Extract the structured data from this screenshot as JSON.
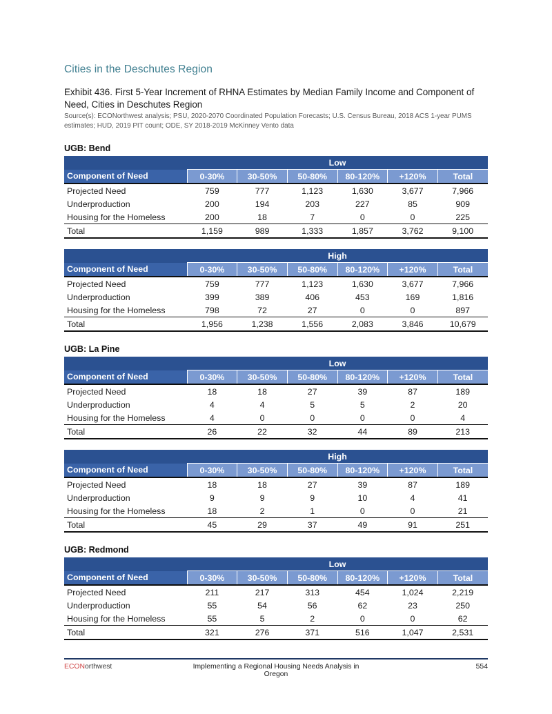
{
  "page": {
    "section_title": "Cities in the Deschutes Region",
    "exhibit_title": "Exhibit 436. First 5-Year Increment of RHNA Estimates by Median Family Income and Component of Need, Cities in Deschutes Region",
    "source": "Source(s): ECONorthwest analysis; PSU, 2020-2070 Coordinated Population Forecasts; U.S. Census Bureau, 2018 ACS 1-year PUMS estimates; HUD, 2019 PIT count; ODE, SY 2018-2019 McKinney Vento data"
  },
  "colors": {
    "section_title_teal": "#3e7e8f",
    "scenario_row_blue": "#2b5191",
    "row_header_blue": "#3a63a8",
    "column_header_blue": "#7b9ad1",
    "footer_rule_navy": "#1f3864",
    "brand_red": "#cf4343"
  },
  "table_template": {
    "row_header": "Component of Need",
    "columns": [
      "0-30%",
      "30-50%",
      "50-80%",
      "80-120%",
      "+120%",
      "Total"
    ]
  },
  "sections": [
    {
      "ugb": "UGB: Bend",
      "tables": [
        {
          "scenario": "Low",
          "rows": [
            {
              "label": "Projected Need",
              "values": [
                "759",
                "777",
                "1,123",
                "1,630",
                "3,677",
                "7,966"
              ]
            },
            {
              "label": "Underproduction",
              "values": [
                "200",
                "194",
                "203",
                "227",
                "85",
                "909"
              ]
            },
            {
              "label": "Housing for the Homeless",
              "values": [
                "200",
                "18",
                "7",
                "0",
                "0",
                "225"
              ]
            }
          ],
          "total": {
            "label": "Total",
            "values": [
              "1,159",
              "989",
              "1,333",
              "1,857",
              "3,762",
              "9,100"
            ]
          }
        },
        {
          "scenario": "High",
          "rows": [
            {
              "label": "Projected Need",
              "values": [
                "759",
                "777",
                "1,123",
                "1,630",
                "3,677",
                "7,966"
              ]
            },
            {
              "label": "Underproduction",
              "values": [
                "399",
                "389",
                "406",
                "453",
                "169",
                "1,816"
              ]
            },
            {
              "label": "Housing for the Homeless",
              "values": [
                "798",
                "72",
                "27",
                "0",
                "0",
                "897"
              ]
            }
          ],
          "total": {
            "label": "Total",
            "values": [
              "1,956",
              "1,238",
              "1,556",
              "2,083",
              "3,846",
              "10,679"
            ]
          }
        }
      ]
    },
    {
      "ugb": "UGB: La Pine",
      "tables": [
        {
          "scenario": "Low",
          "rows": [
            {
              "label": "Projected Need",
              "values": [
                "18",
                "18",
                "27",
                "39",
                "87",
                "189"
              ]
            },
            {
              "label": "Underproduction",
              "values": [
                "4",
                "4",
                "5",
                "5",
                "2",
                "20"
              ]
            },
            {
              "label": "Housing for the Homeless",
              "values": [
                "4",
                "0",
                "0",
                "0",
                "0",
                "4"
              ]
            }
          ],
          "total": {
            "label": "Total",
            "values": [
              "26",
              "22",
              "32",
              "44",
              "89",
              "213"
            ]
          }
        },
        {
          "scenario": "High",
          "rows": [
            {
              "label": "Projected Need",
              "values": [
                "18",
                "18",
                "27",
                "39",
                "87",
                "189"
              ]
            },
            {
              "label": "Underproduction",
              "values": [
                "9",
                "9",
                "9",
                "10",
                "4",
                "41"
              ]
            },
            {
              "label": "Housing for the Homeless",
              "values": [
                "18",
                "2",
                "1",
                "0",
                "0",
                "21"
              ]
            }
          ],
          "total": {
            "label": "Total",
            "values": [
              "45",
              "29",
              "37",
              "49",
              "91",
              "251"
            ]
          }
        }
      ]
    },
    {
      "ugb": "UGB: Redmond",
      "tables": [
        {
          "scenario": "Low",
          "rows": [
            {
              "label": "Projected Need",
              "values": [
                "211",
                "217",
                "313",
                "454",
                "1,024",
                "2,219"
              ]
            },
            {
              "label": "Underproduction",
              "values": [
                "55",
                "54",
                "56",
                "62",
                "23",
                "250"
              ]
            },
            {
              "label": "Housing for the Homeless",
              "values": [
                "55",
                "5",
                "2",
                "0",
                "0",
                "62"
              ]
            }
          ],
          "total": {
            "label": "Total",
            "values": [
              "321",
              "276",
              "371",
              "516",
              "1,047",
              "2,531"
            ]
          }
        }
      ]
    }
  ],
  "footer": {
    "brand_red_part": "ECON",
    "brand_rest": "orthwest",
    "center_text": "Implementing a Regional Housing Needs Analysis in Oregon",
    "page_number": "554"
  }
}
